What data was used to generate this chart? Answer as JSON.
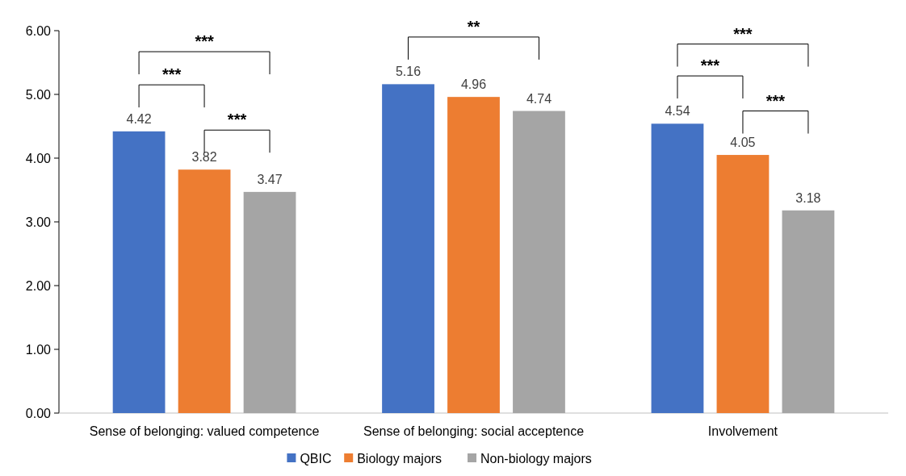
{
  "chart_data": {
    "type": "bar",
    "categories": [
      "Sense of belonging: valued competence",
      "Sense of belonging: social acceptence",
      "Involvement"
    ],
    "series": [
      {
        "name": "QBIC",
        "color": "#4472c4",
        "values": [
          4.42,
          5.16,
          4.54
        ]
      },
      {
        "name": "Biology majors",
        "color": "#ed7d31",
        "values": [
          3.82,
          4.96,
          4.05
        ]
      },
      {
        "name": "Non-biology majors",
        "color": "#a5a5a5",
        "values": [
          3.47,
          4.74,
          3.18
        ]
      }
    ],
    "ylim": [
      0,
      6
    ],
    "yticks": [
      {
        "value": 0,
        "label": "0.00"
      },
      {
        "value": 1,
        "label": "1.00"
      },
      {
        "value": 2,
        "label": "2.00"
      },
      {
        "value": 3,
        "label": "3.00"
      },
      {
        "value": 4,
        "label": "4.00"
      },
      {
        "value": 5,
        "label": "5.00"
      },
      {
        "value": 6,
        "label": "6.00"
      }
    ],
    "data_labels": true,
    "legend": "bottom",
    "annotations": [
      "***",
      "***",
      "***",
      "**",
      "***",
      "***",
      "***"
    ]
  }
}
